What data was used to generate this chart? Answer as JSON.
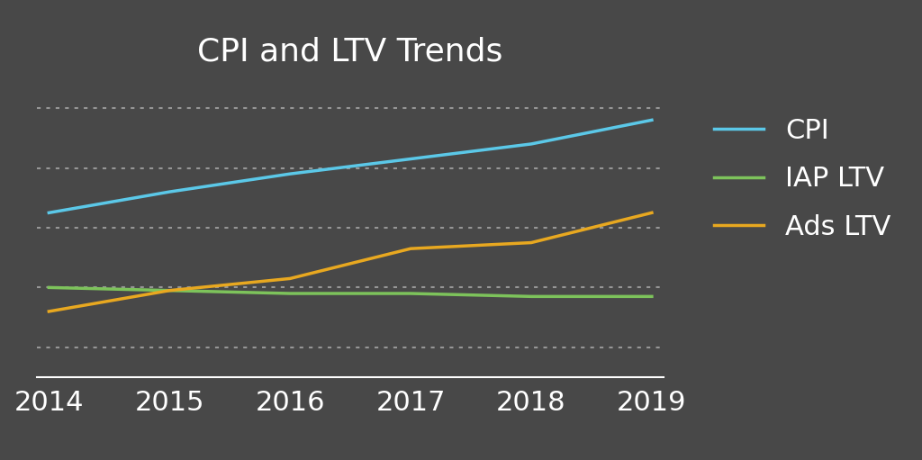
{
  "title": "CPI and LTV Trends",
  "background_color": "#484848",
  "text_color": "#ffffff",
  "title_fontsize": 26,
  "x_years": [
    2014,
    2015,
    2016,
    2017,
    2018,
    2019
  ],
  "cpi": [
    0.55,
    0.62,
    0.68,
    0.73,
    0.78,
    0.86
  ],
  "iap_ltv": [
    0.3,
    0.29,
    0.28,
    0.28,
    0.27,
    0.27
  ],
  "ads_ltv": [
    0.22,
    0.29,
    0.33,
    0.43,
    0.45,
    0.55
  ],
  "cpi_color": "#5bc8e8",
  "iap_ltv_color": "#7dc35b",
  "ads_ltv_color": "#e8a820",
  "line_width": 2.5,
  "grid_color": "#aaaaaa",
  "grid_linewidth": 1.5,
  "ylim": [
    0.0,
    1.0
  ],
  "xlim_min": 2013.9,
  "xlim_max": 2019.1,
  "legend_fontsize": 22,
  "tick_fontsize": 22,
  "spine_color": "#ffffff",
  "grid_yticks": [
    0.1,
    0.3,
    0.5,
    0.7,
    0.9
  ]
}
